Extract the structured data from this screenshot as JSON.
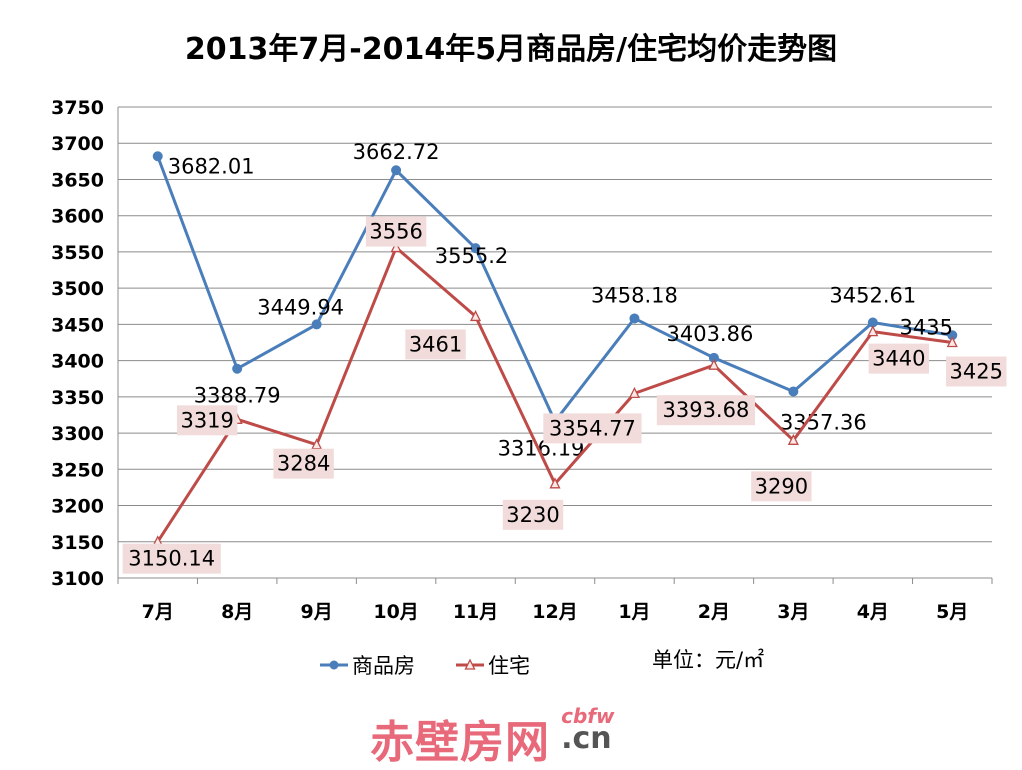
{
  "chart_data": {
    "type": "line",
    "title": "2013年7月-2014年5月商品房/住宅均价走势图",
    "categories": [
      "7月",
      "8月",
      "9月",
      "10月",
      "11月",
      "12月",
      "1月",
      "2月",
      "3月",
      "4月",
      "5月"
    ],
    "ylim": [
      3100,
      3750
    ],
    "yticks": [
      3100,
      3150,
      3200,
      3250,
      3300,
      3350,
      3400,
      3450,
      3500,
      3550,
      3600,
      3650,
      3700,
      3750
    ],
    "grid": true,
    "legend_position": "bottom",
    "unit_note": "单位：元/㎡",
    "series": [
      {
        "name": "商品房",
        "color": "#4a7ebb",
        "marker": "circle",
        "values": [
          3682.01,
          3388.79,
          3449.94,
          3662.72,
          3555.2,
          3316.19,
          3458.18,
          3403.86,
          3357.36,
          3452.61,
          3435
        ],
        "labels": [
          "3682.01",
          "3388.79",
          "3449.94",
          "3662.72",
          "3555.2",
          "3316.19",
          "3458.18",
          "3403.86",
          "3357.36",
          "3452.61",
          "3435"
        ]
      },
      {
        "name": "住宅",
        "color": "#be4b48",
        "marker": "triangle",
        "values": [
          3150.14,
          3319,
          3284,
          3556,
          3461,
          3230,
          3354.77,
          3393.68,
          3290,
          3440,
          3425
        ],
        "labels": [
          "3150.14",
          "3319",
          "3284",
          "3556",
          "3461",
          "3230",
          "3354.77",
          "3393.68",
          "3290",
          "3440",
          "3425"
        ]
      }
    ]
  },
  "watermark": {
    "main": "赤壁房网",
    "small": "cbfw",
    "big": ".cn"
  }
}
